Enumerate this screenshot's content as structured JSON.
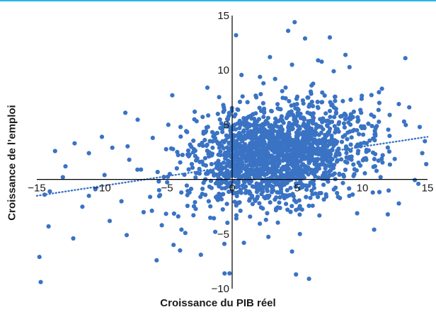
{
  "colors": {
    "rule": "#29b6e6",
    "points": "#3a73c4",
    "axis": "#000000",
    "trend": "#3a73c4"
  },
  "chart_data": {
    "type": "scatter",
    "xlabel": "Croissance du PIB réel",
    "ylabel": "Croissance de l’emploi",
    "xlim": [
      -15,
      15
    ],
    "ylim": [
      -10,
      15
    ],
    "x_ticks": [
      -15,
      -10,
      -5,
      0,
      5,
      10,
      15
    ],
    "y_ticks": [
      -10,
      -5,
      5,
      10,
      15
    ],
    "x_tick_labels": [
      "−15",
      "−10",
      "−5",
      "0",
      "5",
      "10",
      "15"
    ],
    "y_tick_labels": [
      "−10",
      "−5",
      "5",
      "10",
      "15"
    ],
    "grid": false,
    "legend": "none",
    "trend_line": {
      "style": "dotted",
      "x": [
        -15,
        15
      ],
      "y": [
        -1.5,
        3.9
      ]
    },
    "cluster": {
      "center_x": 3.5,
      "center_y": 2.3,
      "spread_x": 3.3,
      "spread_y": 2.2,
      "count": 1800,
      "seed": 7
    },
    "series": [
      {
        "values": [
          {
            "x": 0.3,
            "y": 13.2
          },
          {
            "x": 4.8,
            "y": 14.4
          },
          {
            "x": 2.9,
            "y": 11.2
          },
          {
            "x": 4.3,
            "y": 13.6
          },
          {
            "x": 5.6,
            "y": 12.9
          },
          {
            "x": 6.6,
            "y": 10.9
          },
          {
            "x": 8.7,
            "y": 11.4
          },
          {
            "x": 13.3,
            "y": 11.1
          },
          {
            "x": 7.8,
            "y": 9.9
          },
          {
            "x": -1.9,
            "y": 8.4
          },
          {
            "x": 7.5,
            "y": 13.0
          },
          {
            "x": 4.6,
            "y": 10.5
          },
          {
            "x": -4.6,
            "y": 7.7
          },
          {
            "x": -8.2,
            "y": 6.1
          },
          {
            "x": -2.9,
            "y": 5.5
          },
          {
            "x": -4.9,
            "y": 5.0
          },
          {
            "x": -1.1,
            "y": 6.0
          },
          {
            "x": -10.0,
            "y": 3.9
          },
          {
            "x": -12.1,
            "y": 3.3
          },
          {
            "x": -13.6,
            "y": 2.6
          },
          {
            "x": -12.8,
            "y": 1.2
          },
          {
            "x": -11.0,
            "y": 2.4
          },
          {
            "x": -9.2,
            "y": 2.9
          },
          {
            "x": -7.9,
            "y": 1.8
          },
          {
            "x": -6.1,
            "y": 3.8
          },
          {
            "x": -7.0,
            "y": 0.9
          },
          {
            "x": -9.8,
            "y": 0.4
          },
          {
            "x": -13.0,
            "y": 0.2
          },
          {
            "x": -14.0,
            "y": -1.1
          },
          {
            "x": -14.4,
            "y": -1.4
          },
          {
            "x": -11.0,
            "y": -1.5
          },
          {
            "x": -14.8,
            "y": -7.1
          },
          {
            "x": -14.7,
            "y": -9.4
          },
          {
            "x": -14.1,
            "y": -4.3
          },
          {
            "x": -12.2,
            "y": -5.4
          },
          {
            "x": -11.5,
            "y": -2.5
          },
          {
            "x": -9.4,
            "y": -3.8
          },
          {
            "x": -8.5,
            "y": -2.0
          },
          {
            "x": -8.1,
            "y": -5.1
          },
          {
            "x": -6.8,
            "y": -3.0
          },
          {
            "x": -5.4,
            "y": -4.2
          },
          {
            "x": -4.5,
            "y": -6.0
          },
          {
            "x": -5.8,
            "y": -7.4
          },
          {
            "x": -4.0,
            "y": -6.5
          },
          {
            "x": -3.6,
            "y": -4.9
          },
          {
            "x": -2.4,
            "y": -6.9
          },
          {
            "x": -1.3,
            "y": -4.8
          },
          {
            "x": -0.6,
            "y": -5.9
          },
          {
            "x": -0.2,
            "y": -8.6
          },
          {
            "x": 0.9,
            "y": -5.8
          },
          {
            "x": 2.6,
            "y": -3.7
          },
          {
            "x": 4.6,
            "y": -6.6
          },
          {
            "x": 4.9,
            "y": -8.7
          },
          {
            "x": 5.9,
            "y": -9.1
          },
          {
            "x": 5.2,
            "y": -5.0
          },
          {
            "x": 6.7,
            "y": -3.3
          },
          {
            "x": 9.6,
            "y": -3.1
          },
          {
            "x": 10.9,
            "y": -4.6
          },
          {
            "x": 12.8,
            "y": -2.2
          },
          {
            "x": 14.3,
            "y": -0.4
          },
          {
            "x": 14.6,
            "y": 2.4
          },
          {
            "x": 14.4,
            "y": 4.8
          },
          {
            "x": 13.6,
            "y": 6.6
          },
          {
            "x": 12.8,
            "y": 6.9
          },
          {
            "x": 13.2,
            "y": 5.3
          },
          {
            "x": 12.1,
            "y": 5.9
          },
          {
            "x": 11.3,
            "y": 7.0
          },
          {
            "x": 11.5,
            "y": 8.3
          },
          {
            "x": 11.0,
            "y": 4.0
          },
          {
            "x": 10.3,
            "y": 1.8
          },
          {
            "x": 10.8,
            "y": -1.2
          },
          {
            "x": 9.1,
            "y": 7.3
          },
          {
            "x": 9.9,
            "y": 6.1
          },
          {
            "x": 14.8,
            "y": 3.5
          },
          {
            "x": 14.9,
            "y": 1.4
          },
          {
            "x": -2.8,
            "y": -2.7
          },
          {
            "x": -3.9,
            "y": -1.2
          },
          {
            "x": -1.8,
            "y": -2.0
          },
          {
            "x": -6.3,
            "y": -1.6
          },
          {
            "x": -10.5,
            "y": -0.9
          },
          {
            "x": -3.1,
            "y": 1.4
          },
          {
            "x": -1.5,
            "y": 2.9
          },
          {
            "x": -2.2,
            "y": 4.2
          },
          {
            "x": -0.9,
            "y": 4.7
          },
          {
            "x": 2.4,
            "y": 8.8
          },
          {
            "x": 3.3,
            "y": 9.2
          },
          {
            "x": 6.1,
            "y": 8.6
          },
          {
            "x": 0.8,
            "y": 7.6
          }
        ]
      }
    ]
  }
}
